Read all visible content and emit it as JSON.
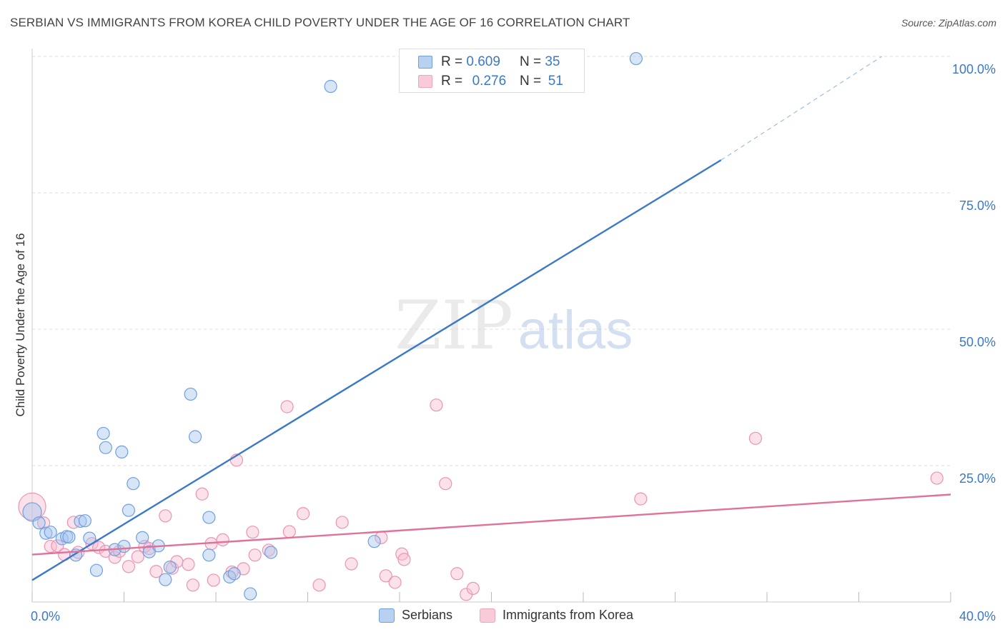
{
  "title": "SERBIAN VS IMMIGRANTS FROM KOREA CHILD POVERTY UNDER THE AGE OF 16 CORRELATION CHART",
  "source": "Source: ZipAtlas.com",
  "watermark": {
    "zip": "ZIP",
    "atlas": "atlas"
  },
  "legend_stats": [
    {
      "r_label": "R =",
      "r_value": "0.609",
      "n_label": "N =",
      "n_value": "35"
    },
    {
      "r_label": "R =",
      "r_value": "0.276",
      "n_label": "N =",
      "n_value": "51"
    }
  ],
  "chart_data": {
    "type": "scatter",
    "title": "SERBIAN VS IMMIGRANTS FROM KOREA CHILD POVERTY UNDER THE AGE OF 16 CORRELATION CHART",
    "xlabel": "",
    "ylabel": "Child Poverty Under the Age of 16",
    "xlim": [
      0,
      40
    ],
    "ylim": [
      0,
      100
    ],
    "x_tick_labels": [
      "0.0%",
      "40.0%"
    ],
    "y_tick_values": [
      25,
      50,
      75,
      100
    ],
    "y_tick_labels": [
      "25.0%",
      "50.0%",
      "75.0%",
      "100.0%"
    ],
    "grid": true,
    "legend_position": "bottom",
    "series": [
      {
        "name": "Serbians",
        "color": "#6fa0e0",
        "r": 0.609,
        "n": 35,
        "trend": {
          "x": [
            0,
            30
          ],
          "y": [
            4,
            81
          ],
          "dashed_to": [
            37,
            100
          ]
        },
        "points": [
          [
            0.0,
            16.5
          ],
          [
            0.3,
            14.5
          ],
          [
            0.6,
            12.6
          ],
          [
            0.8,
            12.8
          ],
          [
            1.3,
            11.6
          ],
          [
            1.5,
            12.0
          ],
          [
            1.6,
            11.9
          ],
          [
            1.9,
            8.6
          ],
          [
            2.1,
            14.8
          ],
          [
            2.3,
            14.9
          ],
          [
            2.5,
            11.7
          ],
          [
            2.8,
            5.8
          ],
          [
            3.1,
            30.9
          ],
          [
            3.2,
            28.3
          ],
          [
            3.6,
            9.6
          ],
          [
            3.9,
            27.5
          ],
          [
            4.0,
            10.2
          ],
          [
            4.2,
            16.8
          ],
          [
            4.4,
            21.7
          ],
          [
            4.8,
            11.8
          ],
          [
            5.1,
            9.2
          ],
          [
            5.5,
            10.3
          ],
          [
            5.8,
            4.1
          ],
          [
            6.0,
            6.4
          ],
          [
            6.9,
            38.1
          ],
          [
            7.1,
            30.3
          ],
          [
            7.7,
            15.5
          ],
          [
            7.7,
            8.6
          ],
          [
            8.6,
            4.6
          ],
          [
            8.8,
            5.2
          ],
          [
            9.5,
            1.5
          ],
          [
            10.4,
            9.1
          ],
          [
            13.0,
            94.5
          ],
          [
            14.9,
            11.1
          ],
          [
            26.3,
            99.6
          ]
        ]
      },
      {
        "name": "Immigrants from Korea",
        "color": "#f2a5bd",
        "r": 0.276,
        "n": 51,
        "trend": {
          "x": [
            0,
            40
          ],
          "y": [
            8.7,
            19.7
          ]
        },
        "points": [
          [
            0.0,
            17.5
          ],
          [
            0.5,
            14.5
          ],
          [
            0.8,
            10.2
          ],
          [
            1.1,
            10.3
          ],
          [
            1.4,
            8.7
          ],
          [
            1.8,
            14.6
          ],
          [
            2.0,
            9.1
          ],
          [
            2.6,
            10.7
          ],
          [
            2.9,
            10.0
          ],
          [
            3.2,
            9.3
          ],
          [
            3.6,
            8.2
          ],
          [
            3.8,
            9.3
          ],
          [
            4.2,
            6.5
          ],
          [
            4.6,
            8.3
          ],
          [
            4.9,
            10.2
          ],
          [
            5.1,
            9.8
          ],
          [
            5.4,
            5.6
          ],
          [
            5.8,
            15.8
          ],
          [
            6.1,
            6.2
          ],
          [
            6.3,
            7.4
          ],
          [
            6.8,
            6.9
          ],
          [
            7.0,
            3.1
          ],
          [
            7.4,
            19.8
          ],
          [
            7.8,
            10.7
          ],
          [
            7.9,
            4.0
          ],
          [
            8.3,
            11.4
          ],
          [
            8.7,
            5.5
          ],
          [
            8.9,
            26.0
          ],
          [
            9.2,
            6.1
          ],
          [
            9.6,
            12.8
          ],
          [
            9.7,
            8.6
          ],
          [
            10.3,
            9.5
          ],
          [
            11.1,
            35.8
          ],
          [
            11.2,
            12.9
          ],
          [
            11.8,
            16.2
          ],
          [
            12.5,
            3.1
          ],
          [
            13.5,
            14.6
          ],
          [
            13.9,
            7.0
          ],
          [
            15.2,
            11.8
          ],
          [
            15.4,
            4.8
          ],
          [
            15.8,
            3.6
          ],
          [
            16.1,
            8.8
          ],
          [
            16.2,
            7.8
          ],
          [
            17.6,
            36.1
          ],
          [
            18.0,
            21.7
          ],
          [
            18.5,
            5.2
          ],
          [
            18.9,
            1.4
          ],
          [
            19.2,
            2.5
          ],
          [
            26.5,
            18.9
          ],
          [
            31.5,
            30.0
          ],
          [
            39.4,
            22.7
          ]
        ]
      }
    ]
  }
}
